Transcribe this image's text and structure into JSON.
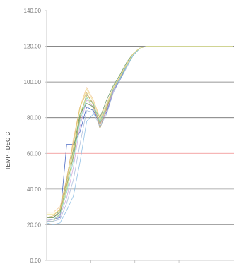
{
  "chart_data": {
    "type": "line",
    "ylabel": "TEMP - DEG C",
    "ylim": [
      0,
      140
    ],
    "y_ticks": [
      "0.00",
      "20.00",
      "40.00",
      "60.00",
      "80.00",
      "100.00",
      "120.00",
      "140.00"
    ],
    "x_tick_count": 4,
    "gridlines": [
      {
        "y": 20,
        "color": "#9a9a9a"
      },
      {
        "y": 40,
        "color": "#9a9a9a"
      },
      {
        "y": 60,
        "color": "#f08a8a"
      },
      {
        "y": 80,
        "color": "#555555"
      },
      {
        "y": 100,
        "color": "#777777"
      },
      {
        "y": 120,
        "color": "#777777"
      }
    ],
    "x": [
      0,
      1,
      2,
      3,
      4,
      5,
      6,
      7,
      8,
      9,
      10,
      11,
      12,
      13,
      14,
      15,
      16,
      17,
      18,
      19,
      20,
      21,
      22,
      23,
      24,
      25,
      26,
      27,
      28
    ],
    "series": [
      {
        "color": "#2a4fb8",
        "values": [
          23,
          23,
          24,
          65,
          65,
          72,
          86,
          84,
          77,
          83,
          95,
          101,
          109,
          115,
          119,
          120,
          120,
          120,
          120,
          120,
          120,
          120,
          120,
          120,
          120,
          120,
          120,
          120,
          120
        ]
      },
      {
        "color": "#8a7a3a",
        "values": [
          24,
          24,
          27,
          42,
          58,
          80,
          93,
          88,
          74,
          85,
          96,
          102,
          110,
          116,
          119,
          120,
          120,
          120,
          120,
          120,
          120,
          120,
          120,
          120,
          120,
          120,
          120,
          120,
          120
        ]
      },
      {
        "color": "#7fb6e0",
        "values": [
          21,
          20,
          21,
          28,
          36,
          55,
          78,
          82,
          79,
          86,
          96,
          102,
          109,
          115,
          119,
          120,
          120,
          120,
          120,
          120,
          120,
          120,
          120,
          120,
          120,
          120,
          120,
          120,
          120
        ]
      },
      {
        "color": "#b7d36a",
        "values": [
          22,
          22,
          26,
          40,
          60,
          82,
          92,
          85,
          78,
          86,
          97,
          103,
          110,
          116,
          119,
          120,
          120,
          120,
          120,
          120,
          120,
          120,
          120,
          120,
          120,
          120,
          120,
          120,
          120
        ]
      },
      {
        "color": "#f2c38e",
        "values": [
          27,
          27,
          30,
          45,
          68,
          86,
          97,
          90,
          80,
          88,
          97,
          103,
          110,
          116,
          119,
          120,
          120,
          120,
          120,
          120,
          120,
          120,
          120,
          120,
          120,
          120,
          120,
          120,
          120
        ]
      },
      {
        "color": "#c9a0d8",
        "values": [
          22,
          23,
          25,
          35,
          52,
          75,
          90,
          86,
          76,
          84,
          95,
          102,
          109,
          115,
          119,
          120,
          120,
          120,
          120,
          120,
          120,
          120,
          120,
          120,
          120,
          120,
          120,
          120,
          120
        ]
      },
      {
        "color": "#5a8f5a",
        "values": [
          24,
          24,
          28,
          44,
          62,
          82,
          88,
          86,
          80,
          90,
          98,
          104,
          111,
          116,
          119,
          120,
          120,
          120,
          120,
          120,
          120,
          120,
          120,
          120,
          120,
          120,
          120,
          120,
          120
        ]
      },
      {
        "color": "#9fb4d8",
        "values": [
          22,
          22,
          23,
          32,
          45,
          65,
          84,
          83,
          75,
          82,
          94,
          101,
          108,
          115,
          119,
          120,
          120,
          120,
          120,
          120,
          120,
          120,
          120,
          120,
          120,
          120,
          120,
          120,
          120
        ]
      },
      {
        "color": "#d7b05a",
        "values": [
          24,
          25,
          29,
          46,
          66,
          86,
          94,
          87,
          76,
          86,
          96,
          103,
          110,
          116,
          119,
          120,
          120,
          120,
          120,
          120,
          120,
          120,
          120,
          120,
          120,
          120,
          120,
          120,
          120
        ]
      },
      {
        "color": "#7fd3c4",
        "values": [
          23,
          23,
          26,
          38,
          56,
          78,
          91,
          88,
          77,
          87,
          96,
          102,
          109,
          115,
          119,
          120,
          120,
          120,
          120,
          120,
          120,
          120,
          120,
          120,
          120,
          120,
          120,
          120,
          120
        ]
      },
      {
        "color": "#f0e08a",
        "values": [
          26,
          26,
          28,
          43,
          64,
          85,
          96,
          89,
          79,
          87,
          97,
          103,
          110,
          116,
          119,
          120,
          120,
          120,
          120,
          120,
          120,
          120,
          120,
          120,
          120,
          120,
          120,
          120,
          120
        ]
      }
    ]
  }
}
